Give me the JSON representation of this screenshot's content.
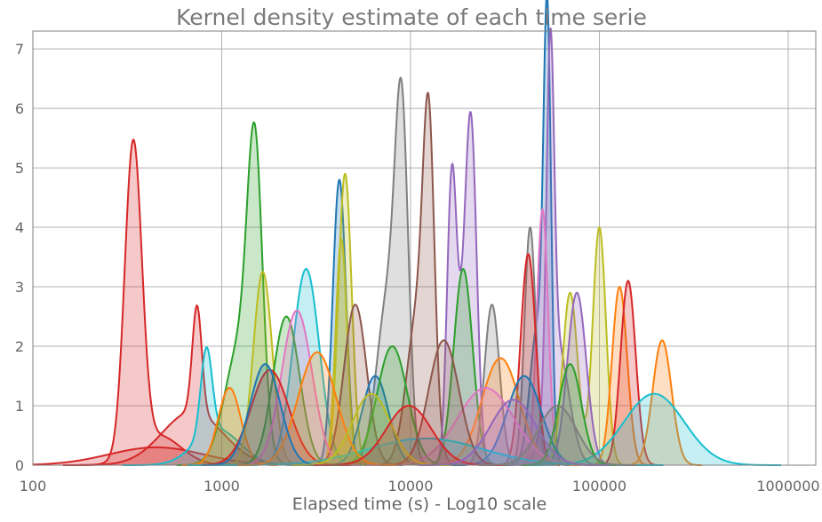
{
  "chart_data": {
    "type": "area",
    "title": "Kernel density estimate of each time serie",
    "xlabel": "Elapsed time (s) - Log10 scale",
    "ylabel": "",
    "x_scale": "log10",
    "xlim": [
      100,
      1400000
    ],
    "ylim": [
      0,
      7.3
    ],
    "x_ticks": [
      100,
      1000,
      10000,
      100000,
      1000000
    ],
    "x_tick_labels": [
      "100",
      "1000",
      "10000",
      "100000",
      "1000000"
    ],
    "y_ticks": [
      0,
      1,
      2,
      3,
      4,
      5,
      6,
      7
    ],
    "y_tick_labels": [
      "0",
      "1",
      "2",
      "3",
      "4",
      "5",
      "6",
      "7"
    ],
    "grid": true,
    "legend": "none",
    "fill_opacity": 0.25,
    "series": [
      {
        "color": "#d62728",
        "components": [
          {
            "mu": 340,
            "sigma": 0.045,
            "peak": 5.2
          },
          {
            "mu": 460,
            "sigma": 0.12,
            "peak": 0.5
          }
        ]
      },
      {
        "color": "#d62728",
        "components": [
          {
            "mu": 740,
            "sigma": 0.025,
            "peak": 1.8
          },
          {
            "mu": 700,
            "sigma": 0.16,
            "peak": 0.9
          }
        ]
      },
      {
        "color": "#d62728",
        "components": [
          {
            "mu": 450,
            "sigma": 0.25,
            "peak": 0.3
          }
        ]
      },
      {
        "color": "#17becf",
        "components": [
          {
            "mu": 830,
            "sigma": 0.03,
            "peak": 1.45
          },
          {
            "mu": 950,
            "sigma": 0.12,
            "peak": 0.6
          }
        ]
      },
      {
        "color": "#2ca02c",
        "components": [
          {
            "mu": 1500,
            "sigma": 0.04,
            "peak": 4.5
          },
          {
            "mu": 1250,
            "sigma": 0.08,
            "peak": 2.0
          }
        ]
      },
      {
        "color": "#ff7f0e",
        "components": [
          {
            "mu": 1100,
            "sigma": 0.06,
            "peak": 1.3
          }
        ]
      },
      {
        "color": "#bcbd22",
        "components": [
          {
            "mu": 1650,
            "sigma": 0.05,
            "peak": 3.25
          }
        ]
      },
      {
        "color": "#17becf",
        "components": [
          {
            "mu": 2800,
            "sigma": 0.07,
            "peak": 3.3
          }
        ]
      },
      {
        "color": "#1f77b4",
        "components": [
          {
            "mu": 4200,
            "sigma": 0.035,
            "peak": 4.8
          }
        ]
      },
      {
        "color": "#bcbd22",
        "components": [
          {
            "mu": 4500,
            "sigma": 0.035,
            "peak": 4.9
          }
        ]
      },
      {
        "color": "#bcbd22",
        "components": [
          {
            "mu": 4300,
            "sigma": 0.03,
            "peak": 3.8
          }
        ]
      },
      {
        "color": "#7f7f7f",
        "components": [
          {
            "mu": 9000,
            "sigma": 0.035,
            "peak": 5.1
          },
          {
            "mu": 7600,
            "sigma": 0.06,
            "peak": 2.8
          }
        ]
      },
      {
        "color": "#8c564b",
        "components": [
          {
            "mu": 12500,
            "sigma": 0.03,
            "peak": 4.5
          },
          {
            "mu": 11000,
            "sigma": 0.06,
            "peak": 2.6
          }
        ]
      },
      {
        "color": "#9467bd",
        "components": [
          {
            "mu": 16500,
            "sigma": 0.025,
            "peak": 4.35
          },
          {
            "mu": 21000,
            "sigma": 0.03,
            "peak": 5.0
          },
          {
            "mu": 18800,
            "sigma": 0.04,
            "peak": 1.8
          }
        ]
      },
      {
        "color": "#2ca02c",
        "components": [
          {
            "mu": 19000,
            "sigma": 0.05,
            "peak": 3.3
          }
        ]
      },
      {
        "color": "#1f77b4",
        "components": [
          {
            "mu": 53000,
            "sigma": 0.02,
            "peak": 6.9
          },
          {
            "mu": 47000,
            "sigma": 0.04,
            "peak": 2.3
          }
        ]
      },
      {
        "color": "#9467bd",
        "components": [
          {
            "mu": 55000,
            "sigma": 0.02,
            "peak": 5.7
          },
          {
            "mu": 60000,
            "sigma": 0.06,
            "peak": 2.0
          }
        ]
      },
      {
        "color": "#e377c2",
        "components": [
          {
            "mu": 50000,
            "sigma": 0.03,
            "peak": 4.3
          }
        ]
      },
      {
        "color": "#7f7f7f",
        "components": [
          {
            "mu": 43000,
            "sigma": 0.03,
            "peak": 4.0
          }
        ]
      },
      {
        "color": "#d62728",
        "components": [
          {
            "mu": 42000,
            "sigma": 0.04,
            "peak": 3.55
          }
        ]
      },
      {
        "color": "#bcbd22",
        "components": [
          {
            "mu": 100000,
            "sigma": 0.035,
            "peak": 4.0
          },
          {
            "mu": 70000,
            "sigma": 0.04,
            "peak": 2.9
          }
        ]
      },
      {
        "color": "#9467bd",
        "components": [
          {
            "mu": 76000,
            "sigma": 0.05,
            "peak": 2.9
          }
        ]
      },
      {
        "color": "#ff7f0e",
        "components": [
          {
            "mu": 128000,
            "sigma": 0.04,
            "peak": 3.0
          }
        ]
      },
      {
        "color": "#d62728",
        "components": [
          {
            "mu": 142000,
            "sigma": 0.04,
            "peak": 3.1
          }
        ]
      },
      {
        "color": "#ff7f0e",
        "components": [
          {
            "mu": 215000,
            "sigma": 0.05,
            "peak": 2.1
          }
        ]
      },
      {
        "color": "#17becf",
        "components": [
          {
            "mu": 195000,
            "sigma": 0.16,
            "peak": 1.2
          }
        ]
      },
      {
        "color": "#7f7f7f",
        "components": [
          {
            "mu": 27000,
            "sigma": 0.04,
            "peak": 2.7
          }
        ]
      },
      {
        "color": "#8c564b",
        "components": [
          {
            "mu": 5100,
            "sigma": 0.06,
            "peak": 2.7
          }
        ]
      },
      {
        "color": "#2ca02c",
        "components": [
          {
            "mu": 2200,
            "sigma": 0.07,
            "peak": 2.5
          }
        ]
      },
      {
        "color": "#e377c2",
        "components": [
          {
            "mu": 2500,
            "sigma": 0.08,
            "peak": 2.6
          }
        ]
      },
      {
        "color": "#d62728",
        "components": [
          {
            "mu": 1800,
            "sigma": 0.1,
            "peak": 1.6
          }
        ]
      },
      {
        "color": "#1f77b4",
        "components": [
          {
            "mu": 6500,
            "sigma": 0.07,
            "peak": 1.5
          }
        ]
      },
      {
        "color": "#2ca02c",
        "components": [
          {
            "mu": 8000,
            "sigma": 0.08,
            "peak": 2.0
          }
        ]
      },
      {
        "color": "#ff7f0e",
        "components": [
          {
            "mu": 30000,
            "sigma": 0.1,
            "peak": 1.8
          }
        ]
      },
      {
        "color": "#1f77b4",
        "components": [
          {
            "mu": 40000,
            "sigma": 0.09,
            "peak": 1.5
          }
        ]
      },
      {
        "color": "#e377c2",
        "components": [
          {
            "mu": 25000,
            "sigma": 0.15,
            "peak": 1.3
          }
        ]
      },
      {
        "color": "#17becf",
        "components": [
          {
            "mu": 12000,
            "sigma": 0.3,
            "peak": 0.45
          }
        ]
      },
      {
        "color": "#2ca02c",
        "components": [
          {
            "mu": 70000,
            "sigma": 0.06,
            "peak": 1.7
          }
        ]
      },
      {
        "color": "#8c564b",
        "components": [
          {
            "mu": 15000,
            "sigma": 0.08,
            "peak": 2.1
          }
        ]
      },
      {
        "color": "#ff7f0e",
        "components": [
          {
            "mu": 3200,
            "sigma": 0.1,
            "peak": 1.9
          }
        ]
      },
      {
        "color": "#1f77b4",
        "components": [
          {
            "mu": 1700,
            "sigma": 0.08,
            "peak": 1.7
          }
        ]
      },
      {
        "color": "#bcbd22",
        "components": [
          {
            "mu": 6200,
            "sigma": 0.1,
            "peak": 1.2
          }
        ]
      },
      {
        "color": "#d62728",
        "components": [
          {
            "mu": 9800,
            "sigma": 0.12,
            "peak": 1.0
          }
        ]
      },
      {
        "color": "#9467bd",
        "components": [
          {
            "mu": 35000,
            "sigma": 0.12,
            "peak": 1.1
          }
        ]
      },
      {
        "color": "#7f7f7f",
        "components": [
          {
            "mu": 60000,
            "sigma": 0.1,
            "peak": 1.0
          }
        ]
      }
    ]
  }
}
